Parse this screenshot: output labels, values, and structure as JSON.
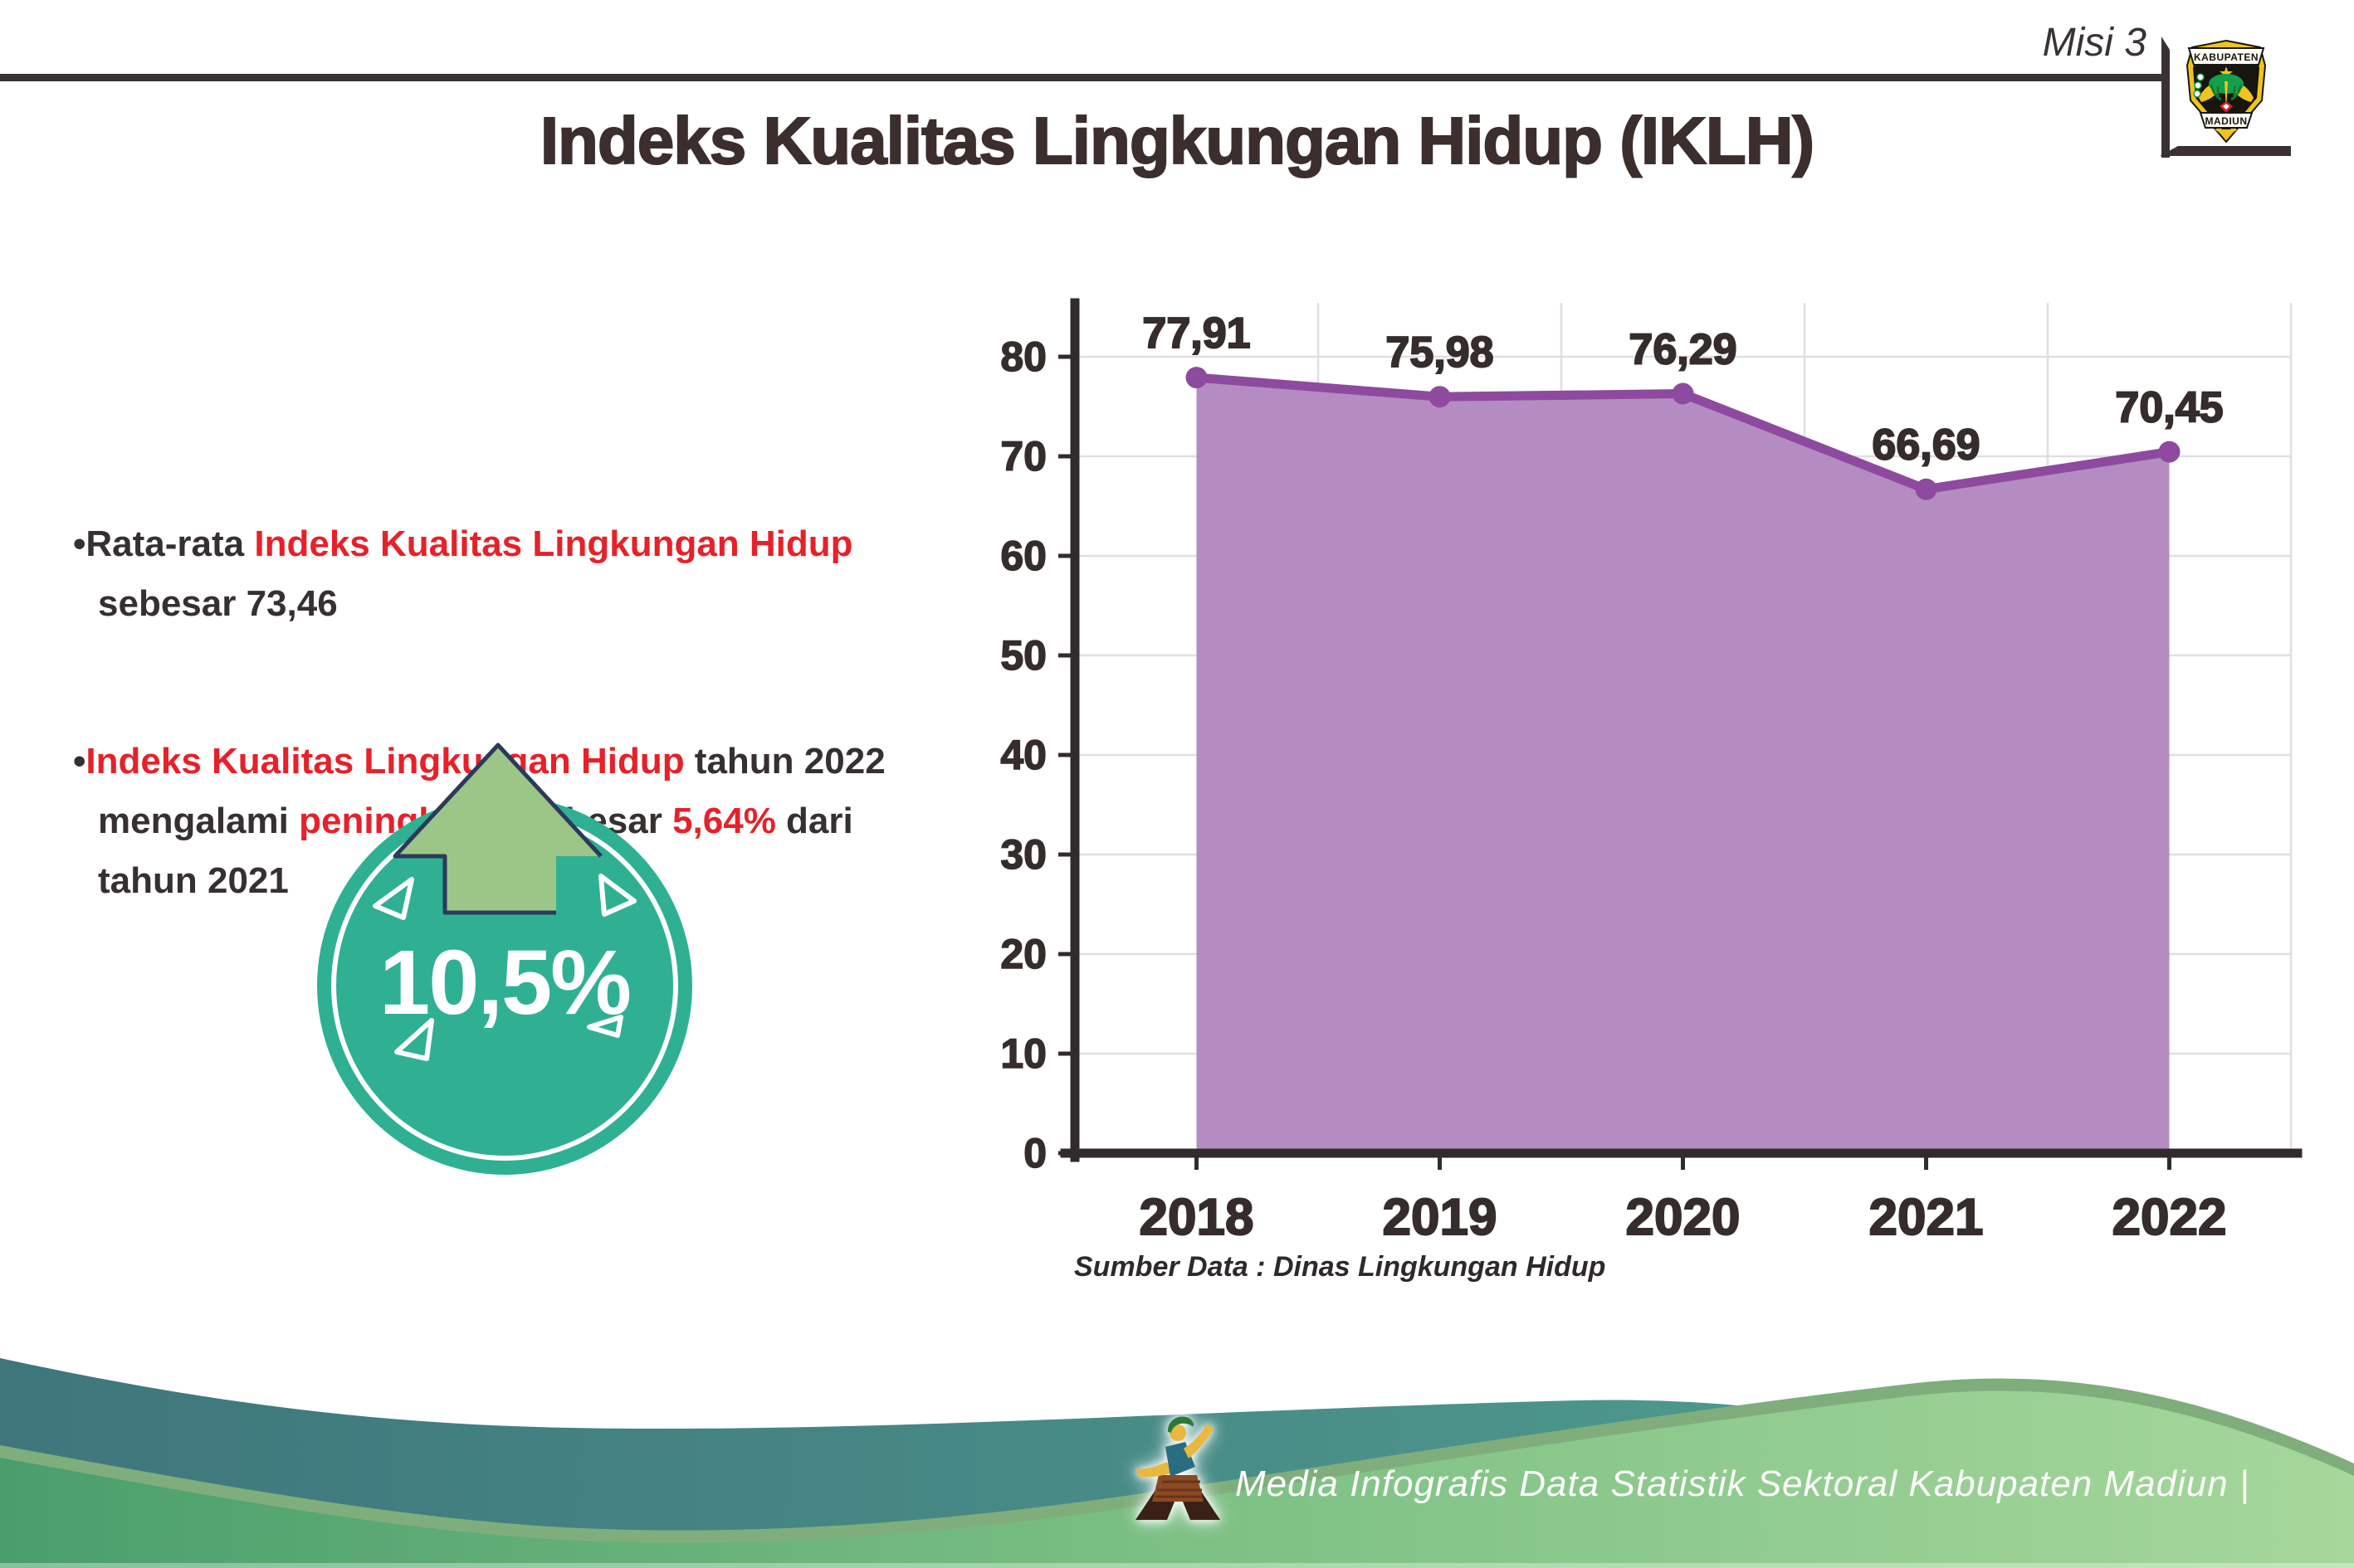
{
  "header": {
    "mission_label": "Misi 3",
    "logo": {
      "top_text": "KABUPATEN",
      "bottom_text": "MADIUN"
    }
  },
  "title": "Indeks Kualitas Lingkungan Hidup (IKLH)",
  "bullet_glyph": "•",
  "bullets": [
    {
      "segments": [
        {
          "text": "Rata-rata ",
          "style": "dark"
        },
        {
          "text": "Indeks Kualitas Lingkungan Hidup",
          "style": "red"
        },
        {
          "text": "\nsebesar 73,46",
          "style": "dark"
        }
      ]
    },
    {
      "segments": [
        {
          "text": "Indeks Kualitas Lingkungan Hidup",
          "style": "red"
        },
        {
          "text": " tahun 2022\nmengalami ",
          "style": "dark"
        },
        {
          "text": "peningkatan",
          "style": "red"
        },
        {
          "text": " sebesar ",
          "style": "dark"
        },
        {
          "text": "5,64%",
          "style": "red"
        },
        {
          "text": " dari\ntahun 2021",
          "style": "dark"
        }
      ]
    }
  ],
  "badge": {
    "value": "10,5%",
    "circle_color": "#2fb093",
    "arrow_color": "#9cc687",
    "arrow_outline": "#2c3a5a"
  },
  "chart_data": {
    "type": "area",
    "title": "",
    "categories": [
      "2018",
      "2019",
      "2020",
      "2021",
      "2022"
    ],
    "values": [
      77.91,
      75.98,
      76.29,
      66.69,
      70.45
    ],
    "value_labels": [
      "77,91",
      "75,98",
      "76,29",
      "66,69",
      "70,45"
    ],
    "xlabel": "",
    "ylabel": "",
    "ylim": [
      0,
      80
    ],
    "yticks": [
      0,
      10,
      20,
      30,
      40,
      50,
      60,
      70,
      80
    ],
    "grid": true,
    "legend": false,
    "fill_color": "#b58cc1",
    "line_color": "#8e4a9e",
    "axis_color": "#332a2b",
    "label_color": "#362c2c"
  },
  "source_note": "Sumber Data : Dinas Lingkungan Hidup",
  "footer": {
    "caption": "Media Infografis Data Statistik Sektoral Kabupaten Madiun |",
    "wave_teal": "#47948a",
    "wave_green_left": "#4a9e6c",
    "wave_green_right": "#a6d79b"
  },
  "colors": {
    "accent_red": "#e62129",
    "text_dark": "#373030"
  }
}
